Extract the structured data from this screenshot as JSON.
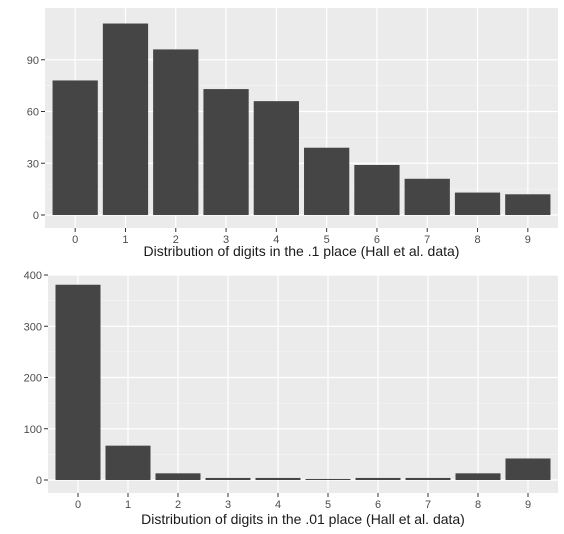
{
  "chart_data": [
    {
      "type": "bar",
      "categories": [
        "0",
        "1",
        "2",
        "3",
        "4",
        "5",
        "6",
        "7",
        "8",
        "9"
      ],
      "values": [
        78,
        111,
        96,
        73,
        66,
        39,
        29,
        21,
        13,
        12
      ],
      "xlabel": "Distribution of digits in the .1 place (Hall et al. data)",
      "ylabel": "",
      "ylim": [
        0,
        120
      ],
      "yticks": [
        0,
        30,
        60,
        90
      ],
      "ytick_labels": [
        "0",
        "30",
        "60",
        "90"
      ],
      "grid": true
    },
    {
      "type": "bar",
      "categories": [
        "0",
        "1",
        "2",
        "3",
        "4",
        "5",
        "6",
        "7",
        "8",
        "9"
      ],
      "values": [
        381,
        67,
        13,
        4,
        4,
        2,
        4,
        4,
        13,
        42
      ],
      "xlabel": "Distribution of digits in the .01 place (Hall et al. data)",
      "ylabel": "",
      "ylim": [
        0,
        400
      ],
      "yticks": [
        0,
        100,
        200,
        300,
        400
      ],
      "ytick_labels": [
        "0",
        "100",
        "200",
        "300",
        "400"
      ],
      "grid": true
    }
  ],
  "colors": {
    "panel_background": "#ebebeb",
    "grid_major": "#ffffff",
    "bar_fill": "#454545",
    "tick_text": "#4d4d4d",
    "title_text": "#1a1a1a"
  }
}
